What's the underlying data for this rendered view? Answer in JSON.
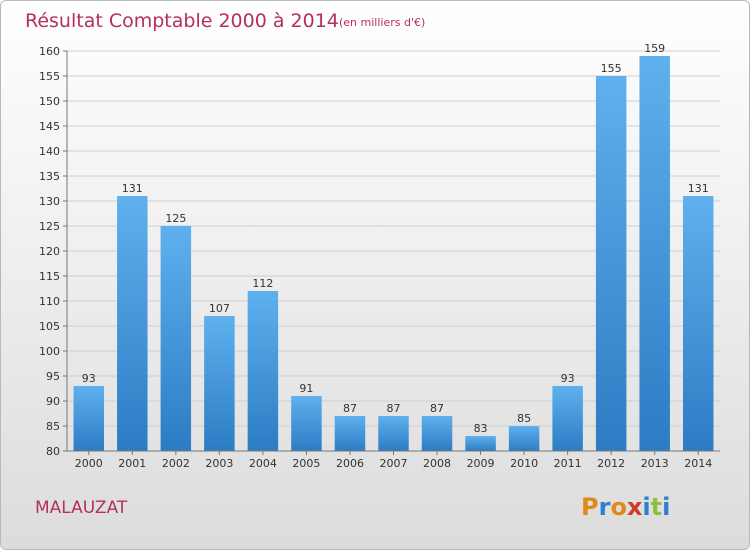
{
  "chart_data": {
    "type": "bar",
    "title": "Résultat Comptable 2000 à 2014",
    "subtitle": "(en milliers d'€)",
    "categories": [
      "2000",
      "2001",
      "2002",
      "2003",
      "2004",
      "2005",
      "2006",
      "2007",
      "2008",
      "2009",
      "2010",
      "2011",
      "2012",
      "2013",
      "2014"
    ],
    "values": [
      93,
      131,
      125,
      107,
      112,
      91,
      87,
      87,
      87,
      83,
      85,
      93,
      155,
      159,
      131
    ],
    "ylim": [
      80,
      160
    ],
    "yticks": [
      80,
      85,
      90,
      95,
      100,
      105,
      110,
      115,
      120,
      125,
      130,
      135,
      140,
      145,
      150,
      155,
      160
    ],
    "grid": true,
    "bar_color": "#3d8fd6"
  },
  "footer": {
    "town": "MALAUZAT",
    "logo_letters": [
      "P",
      "r",
      "o",
      "x",
      "i",
      "t",
      "i"
    ],
    "logo_colors": [
      "#e08a1a",
      "#2f7fd0",
      "#e08a1a",
      "#d43a2a",
      "#2f7fd0",
      "#8cc13f",
      "#2f7fd0"
    ]
  }
}
